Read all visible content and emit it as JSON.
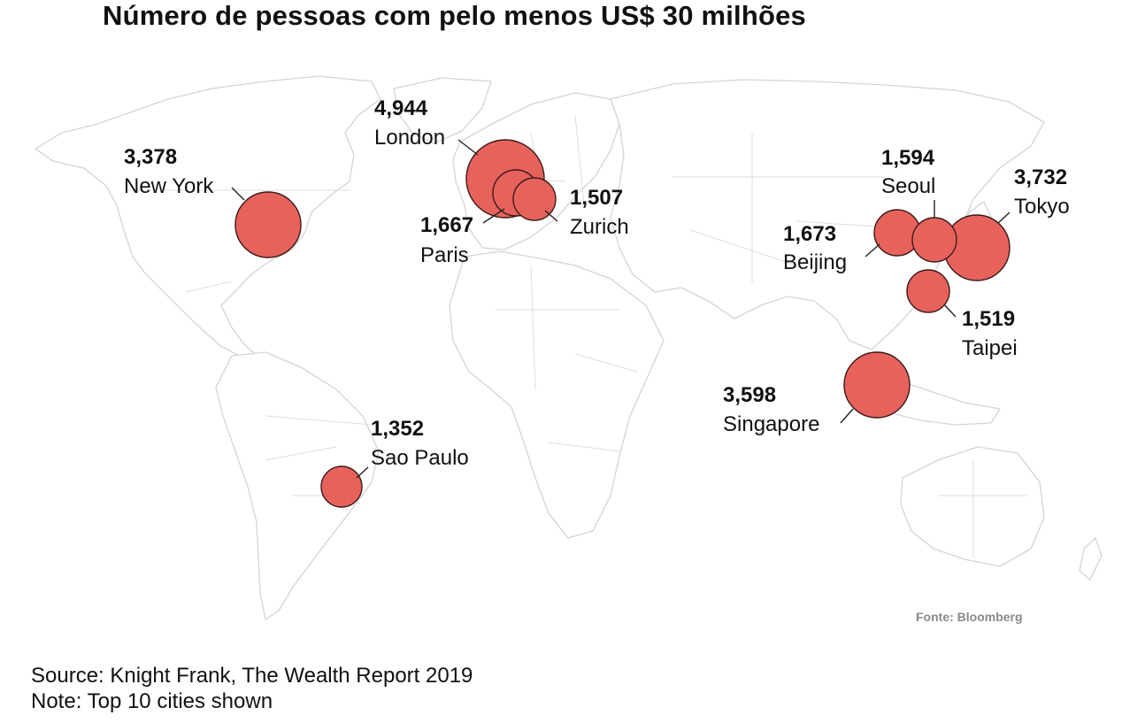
{
  "title": "Número de pessoas com pelo menos US$ 30 milhões",
  "credit": "Fonte: Bloomberg",
  "source": "Source: Knight Frank, The Wealth Report 2019",
  "note": "Note: Top 10 cities shown",
  "colors": {
    "bubble": "#e8625c",
    "land_outline": "#d4d4d4"
  },
  "cities": [
    {
      "name": "London",
      "value": "4,944"
    },
    {
      "name": "Paris",
      "value": "1,667"
    },
    {
      "name": "Zurich",
      "value": "1,507"
    },
    {
      "name": "New York",
      "value": "3,378"
    },
    {
      "name": "Sao Paulo",
      "value": "1,352"
    },
    {
      "name": "Beijing",
      "value": "1,673"
    },
    {
      "name": "Seoul",
      "value": "1,594"
    },
    {
      "name": "Tokyo",
      "value": "3,732"
    },
    {
      "name": "Taipei",
      "value": "1,519"
    },
    {
      "name": "Singapore",
      "value": "3,598"
    }
  ]
}
